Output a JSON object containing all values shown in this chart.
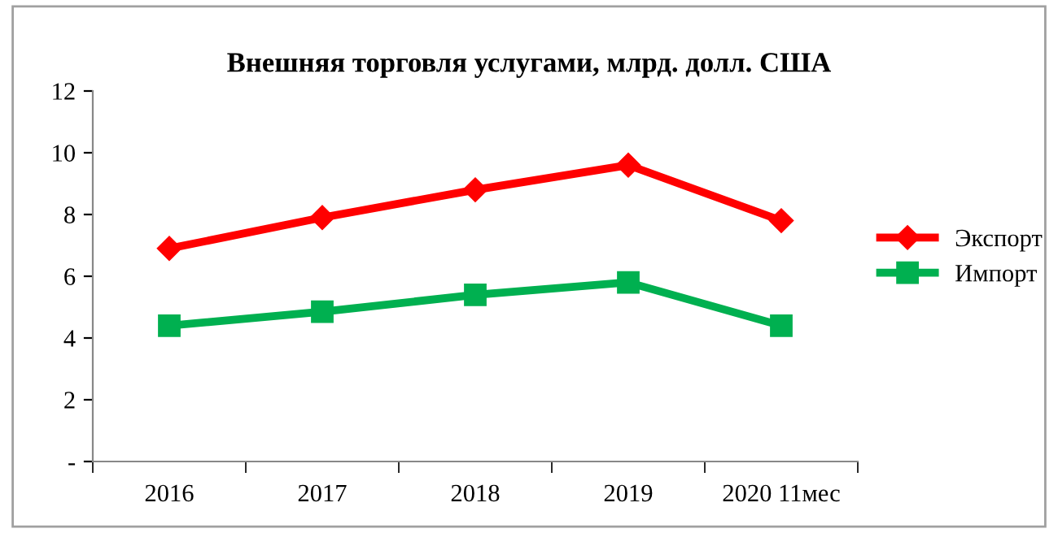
{
  "chart_data": {
    "type": "line",
    "title": "Внешняя торговля услугами, млрд. долл. США",
    "categories": [
      "2016",
      "2017",
      "2018",
      "2019",
      "2020 11мес"
    ],
    "series": [
      {
        "name": "Экспорт",
        "color": "#ff0000",
        "marker": "diamond",
        "values": [
          6.9,
          7.9,
          8.8,
          9.6,
          7.8
        ]
      },
      {
        "name": "Импорт",
        "color": "#00b050",
        "marker": "square",
        "values": [
          4.4,
          4.85,
          5.4,
          5.8,
          4.4
        ]
      }
    ],
    "ylim": [
      0,
      12
    ],
    "yticks": [
      {
        "value": 0,
        "label": "-"
      },
      2,
      4,
      6,
      8,
      10,
      12
    ],
    "grid": false,
    "legend": "right",
    "line_style": "solid"
  }
}
